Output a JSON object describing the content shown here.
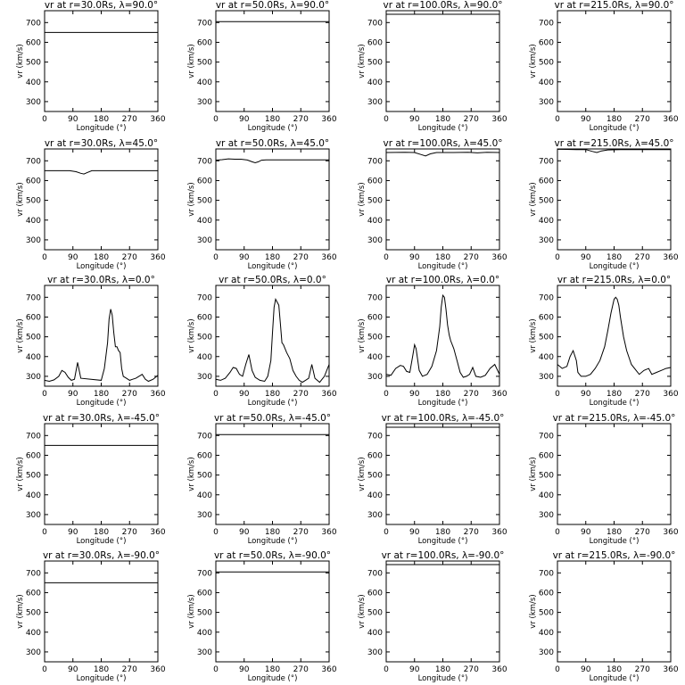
{
  "chart_data": [
    {
      "type": "line",
      "title": "vr at r=30.0Rs, λ=90.0°",
      "xlabel": "Longitude (°)",
      "ylabel": "vr (km/s)",
      "xlim": [
        0,
        360
      ],
      "ylim": [
        250,
        760
      ],
      "xticks": [
        "0",
        "90",
        "180",
        "270",
        "360"
      ],
      "yticks": [
        "300",
        "400",
        "500",
        "600",
        "700"
      ],
      "x": [
        0,
        360
      ],
      "y": [
        650,
        650
      ]
    },
    {
      "type": "line",
      "title": "vr at r=50.0Rs, λ=90.0°",
      "xlabel": "Longitude (°)",
      "ylabel": "vr (km/s)",
      "xlim": [
        0,
        360
      ],
      "ylim": [
        250,
        760
      ],
      "xticks": [
        "0",
        "90",
        "180",
        "270",
        "360"
      ],
      "yticks": [
        "300",
        "400",
        "500",
        "600",
        "700"
      ],
      "x": [
        0,
        360
      ],
      "y": [
        705,
        705
      ]
    },
    {
      "type": "line",
      "title": "vr at r=100.0Rs, λ=90.0°",
      "xlabel": "Longitude (°)",
      "ylabel": "vr (km/s)",
      "xlim": [
        0,
        360
      ],
      "ylim": [
        250,
        760
      ],
      "xticks": [
        "0",
        "90",
        "180",
        "270",
        "360"
      ],
      "yticks": [
        "300",
        "400",
        "500",
        "600",
        "700"
      ],
      "x": [
        0,
        360
      ],
      "y": [
        742,
        742
      ]
    },
    {
      "type": "line",
      "title": "vr at r=215.0Rs, λ=90.0°",
      "xlabel": "Longitude (°)",
      "ylabel": "vr (km/s)",
      "xlim": [
        0,
        360
      ],
      "ylim": [
        250,
        760
      ],
      "xticks": [
        "0",
        "90",
        "180",
        "270",
        "360"
      ],
      "yticks": [
        "300",
        "400",
        "500",
        "600",
        "700"
      ],
      "x": [
        0,
        360
      ],
      "y": [
        760,
        760
      ]
    },
    {
      "type": "line",
      "title": "vr at r=30.0Rs, λ=45.0°",
      "xlabel": "Longitude (°)",
      "ylabel": "vr (km/s)",
      "xlim": [
        0,
        360
      ],
      "ylim": [
        250,
        760
      ],
      "xticks": [
        "0",
        "90",
        "180",
        "270",
        "360"
      ],
      "yticks": [
        "300",
        "400",
        "500",
        "600",
        "700"
      ],
      "x": [
        0,
        80,
        100,
        115,
        125,
        135,
        150,
        170,
        360
      ],
      "y": [
        650,
        650,
        645,
        637,
        633,
        640,
        650,
        650,
        650
      ]
    },
    {
      "type": "line",
      "title": "vr at r=50.0Rs, λ=45.0°",
      "xlabel": "Longitude (°)",
      "ylabel": "vr (km/s)",
      "xlim": [
        0,
        360
      ],
      "ylim": [
        250,
        760
      ],
      "xticks": [
        "0",
        "90",
        "180",
        "270",
        "360"
      ],
      "yticks": [
        "300",
        "400",
        "500",
        "600",
        "700"
      ],
      "x": [
        0,
        20,
        40,
        60,
        80,
        100,
        115,
        125,
        135,
        145,
        160,
        360
      ],
      "y": [
        703,
        706,
        710,
        708,
        708,
        704,
        695,
        690,
        695,
        703,
        705,
        705
      ]
    },
    {
      "type": "line",
      "title": "vr at r=100.0Rs, λ=45.0°",
      "xlabel": "Longitude (°)",
      "ylabel": "vr (km/s)",
      "xlim": [
        0,
        360
      ],
      "ylim": [
        250,
        760
      ],
      "xticks": [
        "0",
        "90",
        "180",
        "270",
        "360"
      ],
      "yticks": [
        "300",
        "400",
        "500",
        "600",
        "700"
      ],
      "x": [
        0,
        60,
        90,
        110,
        125,
        140,
        160,
        200,
        260,
        290,
        320,
        360
      ],
      "y": [
        742,
        743,
        742,
        732,
        725,
        735,
        742,
        742,
        743,
        740,
        743,
        742
      ]
    },
    {
      "type": "line",
      "title": "vr at r=215.0Rs, λ=45.0°",
      "xlabel": "Longitude (°)",
      "ylabel": "vr (km/s)",
      "xlim": [
        0,
        360
      ],
      "ylim": [
        250,
        760
      ],
      "xticks": [
        "0",
        "90",
        "180",
        "270",
        "360"
      ],
      "yticks": [
        "300",
        "400",
        "500",
        "600",
        "700"
      ],
      "x": [
        0,
        60,
        90,
        110,
        125,
        140,
        160,
        200,
        360
      ],
      "y": [
        758,
        757,
        757,
        748,
        742,
        750,
        755,
        757,
        757
      ]
    },
    {
      "type": "line",
      "title": "vr at r=30.0Rs, λ=0.0°",
      "xlabel": "Longitude (°)",
      "ylabel": "vr (km/s)",
      "xlim": [
        0,
        360
      ],
      "ylim": [
        250,
        760
      ],
      "xticks": [
        "0",
        "90",
        "180",
        "270",
        "360"
      ],
      "yticks": [
        "300",
        "400",
        "500",
        "600",
        "700"
      ],
      "x": [
        0,
        15,
        30,
        45,
        55,
        65,
        75,
        85,
        95,
        105,
        115,
        180,
        190,
        200,
        205,
        210,
        215,
        220,
        225,
        230,
        235,
        240,
        245,
        250,
        260,
        270,
        280,
        290,
        300,
        310,
        320,
        330,
        345,
        360
      ],
      "y": [
        280,
        275,
        282,
        300,
        330,
        320,
        295,
        280,
        285,
        370,
        290,
        280,
        340,
        470,
        590,
        640,
        610,
        520,
        450,
        450,
        430,
        420,
        340,
        300,
        290,
        280,
        285,
        290,
        300,
        310,
        285,
        275,
        285,
        305
      ]
    },
    {
      "type": "line",
      "title": "vr at r=50.0Rs, λ=0.0°",
      "xlabel": "Longitude (°)",
      "ylabel": "vr (km/s)",
      "xlim": [
        0,
        360
      ],
      "ylim": [
        250,
        760
      ],
      "xticks": [
        "0",
        "90",
        "180",
        "270",
        "360"
      ],
      "yticks": [
        "300",
        "400",
        "500",
        "600",
        "700"
      ],
      "x": [
        0,
        15,
        30,
        45,
        55,
        65,
        75,
        85,
        95,
        105,
        115,
        125,
        140,
        155,
        165,
        175,
        180,
        185,
        190,
        200,
        205,
        210,
        215,
        225,
        235,
        245,
        255,
        265,
        275,
        285,
        295,
        305,
        315,
        330,
        345,
        360
      ],
      "y": [
        285,
        280,
        290,
        320,
        345,
        340,
        310,
        300,
        360,
        410,
        330,
        295,
        280,
        275,
        300,
        380,
        520,
        650,
        690,
        660,
        570,
        470,
        460,
        420,
        390,
        330,
        300,
        280,
        270,
        280,
        290,
        360,
        290,
        270,
        300,
        360
      ]
    },
    {
      "type": "line",
      "title": "vr at r=100.0Rs, λ=0.0°",
      "xlabel": "Longitude (°)",
      "ylabel": "vr (km/s)",
      "xlim": [
        0,
        360
      ],
      "ylim": [
        250,
        760
      ],
      "xticks": [
        "0",
        "90",
        "180",
        "270",
        "360"
      ],
      "yticks": [
        "300",
        "400",
        "500",
        "600",
        "700"
      ],
      "x": [
        0,
        15,
        30,
        45,
        55,
        65,
        75,
        85,
        90,
        95,
        105,
        115,
        130,
        145,
        160,
        170,
        175,
        180,
        185,
        190,
        195,
        200,
        205,
        215,
        225,
        235,
        245,
        255,
        265,
        275,
        285,
        300,
        315,
        330,
        345,
        360
      ],
      "y": [
        310,
        305,
        340,
        355,
        350,
        325,
        320,
        410,
        460,
        440,
        330,
        300,
        310,
        350,
        430,
        550,
        650,
        710,
        700,
        640,
        560,
        510,
        480,
        440,
        380,
        320,
        295,
        300,
        310,
        345,
        300,
        295,
        305,
        340,
        360,
        310
      ]
    },
    {
      "type": "line",
      "title": "vr at r=215.0Rs, λ=0.0°",
      "xlabel": "Longitude (°)",
      "ylabel": "vr (km/s)",
      "xlim": [
        0,
        360
      ],
      "ylim": [
        250,
        760
      ],
      "xticks": [
        "0",
        "90",
        "180",
        "270",
        "360"
      ],
      "yticks": [
        "300",
        "400",
        "500",
        "600",
        "700"
      ],
      "x": [
        0,
        15,
        30,
        40,
        50,
        60,
        65,
        75,
        90,
        105,
        120,
        135,
        150,
        160,
        170,
        180,
        185,
        190,
        195,
        200,
        210,
        220,
        235,
        250,
        260,
        275,
        290,
        300,
        315,
        330,
        345,
        360
      ],
      "y": [
        360,
        340,
        350,
        400,
        430,
        380,
        320,
        300,
        300,
        310,
        340,
        380,
        450,
        530,
        620,
        690,
        700,
        690,
        660,
        600,
        500,
        430,
        360,
        330,
        310,
        330,
        340,
        310,
        320,
        330,
        340,
        345
      ]
    },
    {
      "type": "line",
      "title": "vr at r=30.0Rs, λ=-45.0°",
      "xlabel": "Longitude (°)",
      "ylabel": "vr (km/s)",
      "xlim": [
        0,
        360
      ],
      "ylim": [
        250,
        760
      ],
      "xticks": [
        "0",
        "90",
        "180",
        "270",
        "360"
      ],
      "yticks": [
        "300",
        "400",
        "500",
        "600",
        "700"
      ],
      "x": [
        0,
        360
      ],
      "y": [
        650,
        650
      ]
    },
    {
      "type": "line",
      "title": "vr at r=50.0Rs, λ=-45.0°",
      "xlabel": "Longitude (°)",
      "ylabel": "vr (km/s)",
      "xlim": [
        0,
        360
      ],
      "ylim": [
        250,
        760
      ],
      "xticks": [
        "0",
        "90",
        "180",
        "270",
        "360"
      ],
      "yticks": [
        "300",
        "400",
        "500",
        "600",
        "700"
      ],
      "x": [
        0,
        360
      ],
      "y": [
        705,
        705
      ]
    },
    {
      "type": "line",
      "title": "vr at r=100.0Rs, λ=-45.0°",
      "xlabel": "Longitude (°)",
      "ylabel": "vr (km/s)",
      "xlim": [
        0,
        360
      ],
      "ylim": [
        250,
        760
      ],
      "xticks": [
        "0",
        "90",
        "180",
        "270",
        "360"
      ],
      "yticks": [
        "300",
        "400",
        "500",
        "600",
        "700"
      ],
      "x": [
        0,
        360
      ],
      "y": [
        742,
        742
      ]
    },
    {
      "type": "line",
      "title": "vr at r=215.0Rs, λ=-45.0°",
      "xlabel": "Longitude (°)",
      "ylabel": "vr (km/s)",
      "xlim": [
        0,
        360
      ],
      "ylim": [
        250,
        760
      ],
      "xticks": [
        "0",
        "90",
        "180",
        "270",
        "360"
      ],
      "yticks": [
        "300",
        "400",
        "500",
        "600",
        "700"
      ],
      "x": [
        0,
        360
      ],
      "y": [
        760,
        760
      ]
    },
    {
      "type": "line",
      "title": "vr at r=30.0Rs, λ=-90.0°",
      "xlabel": "Longitude (°)",
      "ylabel": "vr (km/s)",
      "xlim": [
        0,
        360
      ],
      "ylim": [
        250,
        760
      ],
      "xticks": [
        "0",
        "90",
        "180",
        "270",
        "360"
      ],
      "yticks": [
        "300",
        "400",
        "500",
        "600",
        "700"
      ],
      "x": [
        0,
        360
      ],
      "y": [
        650,
        650
      ]
    },
    {
      "type": "line",
      "title": "vr at r=50.0Rs, λ=-90.0°",
      "xlabel": "Longitude (°)",
      "ylabel": "vr (km/s)",
      "xlim": [
        0,
        360
      ],
      "ylim": [
        250,
        760
      ],
      "xticks": [
        "0",
        "90",
        "180",
        "270",
        "360"
      ],
      "yticks": [
        "300",
        "400",
        "500",
        "600",
        "700"
      ],
      "x": [
        0,
        360
      ],
      "y": [
        705,
        705
      ]
    },
    {
      "type": "line",
      "title": "vr at r=100.0Rs, λ=-90.0°",
      "xlabel": "Longitude (°)",
      "ylabel": "vr (km/s)",
      "xlim": [
        0,
        360
      ],
      "ylim": [
        250,
        760
      ],
      "xticks": [
        "0",
        "90",
        "180",
        "270",
        "360"
      ],
      "yticks": [
        "300",
        "400",
        "500",
        "600",
        "700"
      ],
      "x": [
        0,
        360
      ],
      "y": [
        742,
        742
      ]
    },
    {
      "type": "line",
      "title": "vr at r=215.0Rs, λ=-90.0°",
      "xlabel": "Longitude (°)",
      "ylabel": "vr (km/s)",
      "xlim": [
        0,
        360
      ],
      "ylim": [
        250,
        760
      ],
      "xticks": [
        "0",
        "90",
        "180",
        "270",
        "360"
      ],
      "yticks": [
        "300",
        "400",
        "500",
        "600",
        "700"
      ],
      "x": [
        0,
        360
      ],
      "y": [
        760,
        760
      ]
    }
  ]
}
